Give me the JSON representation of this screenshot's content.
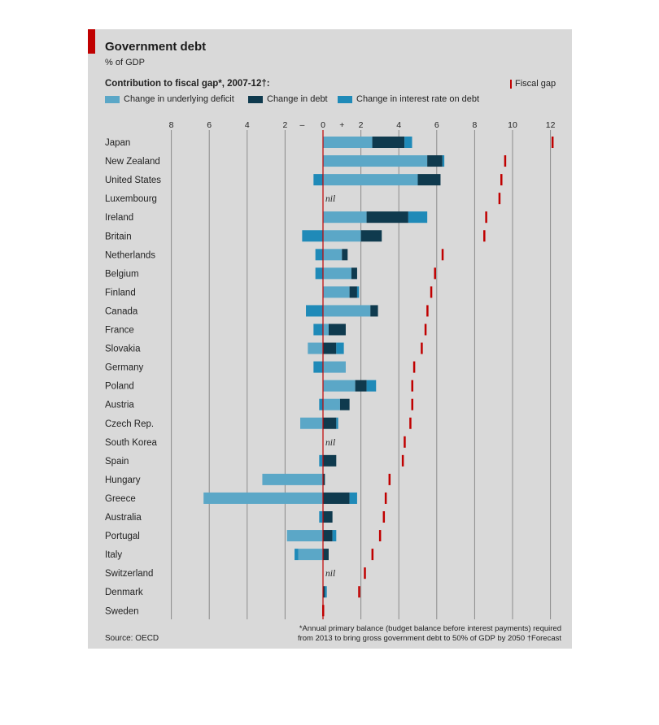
{
  "header": {
    "title": "Government debt",
    "subtitle": "% of GDP",
    "legend_title": "Contribution to fiscal gap*, 2007-12†:",
    "fiscal_gap_label": "Fiscal gap"
  },
  "legend": [
    {
      "label": "Change in underlying deficit",
      "color": "#5ba7c7"
    },
    {
      "label": "Change in debt",
      "color": "#0f3a4e"
    },
    {
      "label": "Change in interest rate on debt",
      "color": "#1f8ab8"
    }
  ],
  "footer": {
    "source": "Source: OECD",
    "footnote_line1": "*Annual primary balance (budget balance before interest payments) required",
    "footnote_line2": "from 2013 to bring gross government debt to 50% of GDP by 2050   †Forecast"
  },
  "colors": {
    "panel": "#d9d9d9",
    "accent": "#c00000",
    "deficit": "#5ba7c7",
    "debt": "#0f3a4e",
    "interest": "#1f8ab8"
  },
  "chart_data": {
    "type": "bar",
    "orientation": "horizontal-stacked",
    "title": "Government debt",
    "subtitle": "% of GDP",
    "xlabel": "",
    "ylabel": "",
    "xlim": [
      -8,
      12
    ],
    "x_ticks": [
      "8",
      "6",
      "4",
      "2",
      "–",
      "0",
      "+",
      "2",
      "4",
      "6",
      "8",
      "10",
      "12"
    ],
    "series_names": [
      "Change in underlying deficit",
      "Change in debt",
      "Change in interest rate on debt"
    ],
    "nil_label": "nil",
    "categories": [
      "Japan",
      "New Zealand",
      "United States",
      "Luxembourg",
      "Ireland",
      "Britain",
      "Netherlands",
      "Belgium",
      "Finland",
      "Canada",
      "France",
      "Slovakia",
      "Germany",
      "Poland",
      "Austria",
      "Czech Rep.",
      "South Korea",
      "Spain",
      "Hungary",
      "Greece",
      "Australia",
      "Portugal",
      "Italy",
      "Switzerland",
      "Denmark",
      "Sweden"
    ],
    "deficit": [
      2.6,
      5.5,
      5.0,
      0,
      2.3,
      2.0,
      1.0,
      1.5,
      1.4,
      2.5,
      0.3,
      -0.8,
      1.2,
      1.7,
      0.9,
      -1.2,
      0,
      0,
      -3.2,
      -6.3,
      0,
      -1.9,
      -1.3,
      0,
      0,
      0
    ],
    "debt": [
      1.7,
      0.8,
      1.2,
      0,
      2.2,
      1.1,
      0.3,
      0.3,
      0.4,
      0.4,
      0.9,
      0.7,
      0,
      0.6,
      0.5,
      0.7,
      0,
      0.7,
      0.1,
      1.4,
      0.5,
      0.5,
      0.3,
      0,
      0.1,
      0
    ],
    "interest": [
      0.4,
      0.1,
      -0.5,
      0,
      1.0,
      -1.1,
      -0.4,
      -0.4,
      0.1,
      -0.9,
      -0.5,
      0.4,
      -0.5,
      0.5,
      -0.2,
      0.1,
      0,
      -0.2,
      0,
      0.4,
      -0.2,
      0.2,
      -0.2,
      0,
      0.1,
      0
    ],
    "nil": [
      false,
      false,
      false,
      true,
      false,
      false,
      false,
      false,
      false,
      false,
      false,
      false,
      false,
      false,
      false,
      false,
      true,
      false,
      false,
      false,
      false,
      false,
      false,
      true,
      false,
      false
    ],
    "fiscal_gap": [
      12.1,
      9.6,
      9.4,
      9.3,
      8.6,
      8.5,
      6.3,
      5.9,
      5.7,
      5.5,
      5.4,
      5.2,
      4.8,
      4.7,
      4.7,
      4.6,
      4.3,
      4.2,
      3.5,
      3.3,
      3.2,
      3.0,
      2.6,
      2.2,
      1.9,
      0
    ]
  }
}
